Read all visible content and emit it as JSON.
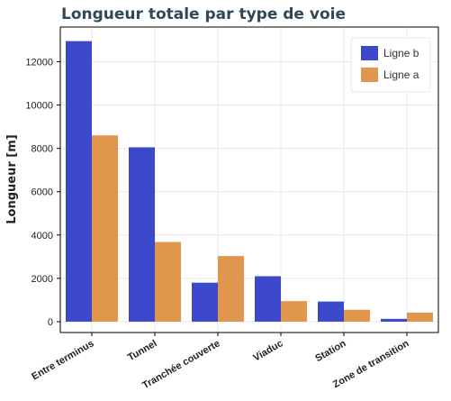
{
  "chart_data": {
    "type": "bar",
    "title": "Longueur totale par type de voie",
    "xlabel": "",
    "ylabel": "Longueur [m]",
    "categories": [
      "Entre terminus",
      "Tunnel",
      "Tranchée couverte",
      "Viaduc",
      "Station",
      "Zone de transition"
    ],
    "series": [
      {
        "name": "Ligne b",
        "color": "#3c49cc",
        "values": [
          12950,
          8050,
          1800,
          2100,
          930,
          130
        ]
      },
      {
        "name": "Ligne a",
        "color": "#e0974d",
        "values": [
          8600,
          3680,
          3030,
          950,
          550,
          420
        ]
      }
    ],
    "yticks": [
      0,
      2000,
      4000,
      6000,
      8000,
      10000,
      12000
    ],
    "ylim": [
      -500,
      13600
    ],
    "grid": true,
    "legend_position": "top-right"
  }
}
